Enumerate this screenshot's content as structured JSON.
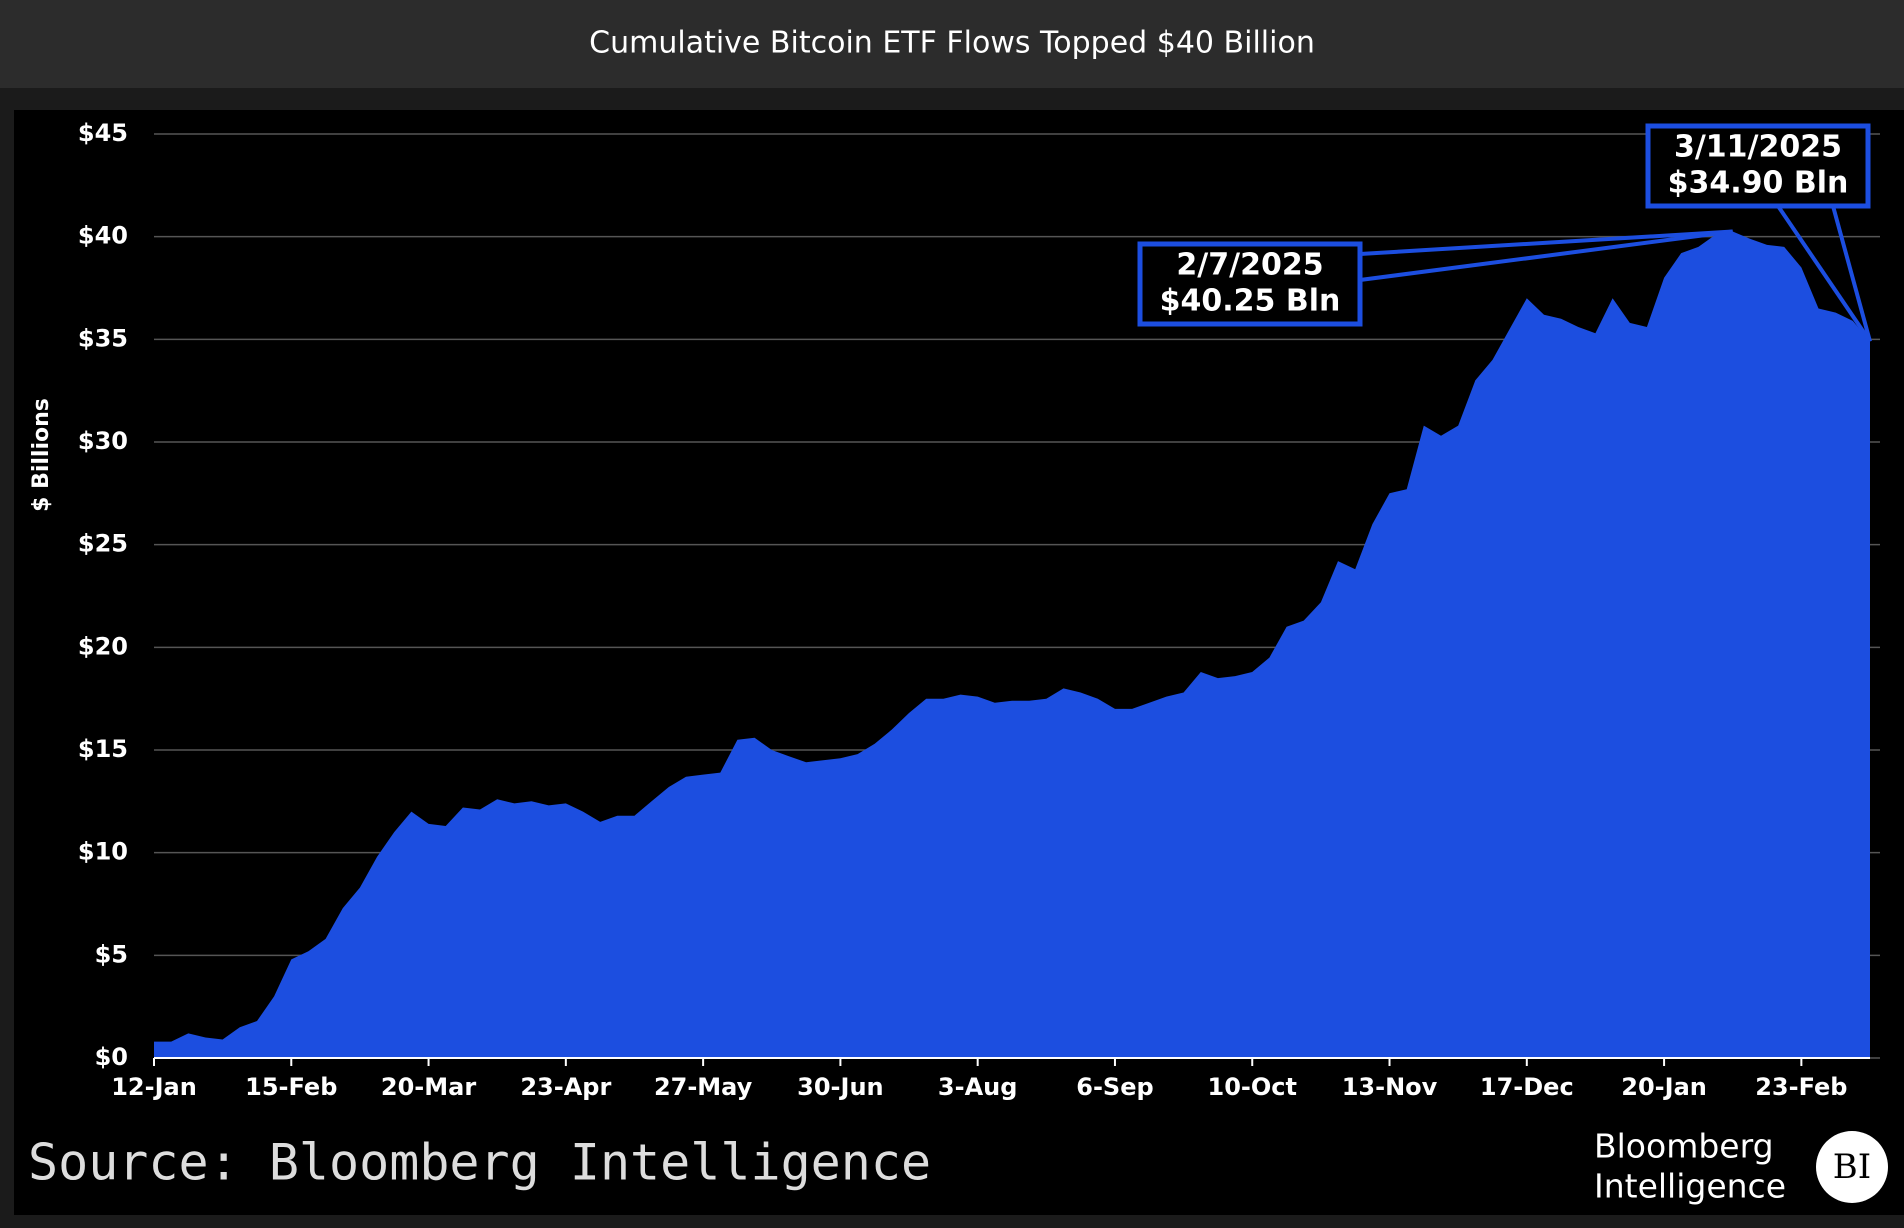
{
  "chart_data": {
    "type": "area",
    "title": "Cumulative Bitcoin ETF Flows Topped $40 Billion",
    "y_label": "$ Billions",
    "color": "#1c4ee0",
    "grid": true,
    "ylim": [
      0,
      45
    ],
    "yticks": [
      {
        "value": 0,
        "label": "$0"
      },
      {
        "value": 5,
        "label": "$5"
      },
      {
        "value": 10,
        "label": "$10"
      },
      {
        "value": 15,
        "label": "$15"
      },
      {
        "value": 20,
        "label": "$20"
      },
      {
        "value": 25,
        "label": "$25"
      },
      {
        "value": 30,
        "label": "$30"
      },
      {
        "value": 35,
        "label": "$35"
      },
      {
        "value": 40,
        "label": "$40"
      },
      {
        "value": 45,
        "label": "$45"
      }
    ],
    "categories": [
      "12-Jan",
      null,
      null,
      null,
      null,
      null,
      null,
      null,
      "15-Feb",
      null,
      null,
      null,
      null,
      null,
      null,
      null,
      "20-Mar",
      null,
      null,
      null,
      null,
      null,
      null,
      null,
      "23-Apr",
      null,
      null,
      null,
      null,
      null,
      null,
      null,
      "27-May",
      null,
      null,
      null,
      null,
      null,
      null,
      null,
      "30-Jun",
      null,
      null,
      null,
      null,
      null,
      null,
      null,
      "3-Aug",
      null,
      null,
      null,
      null,
      null,
      null,
      null,
      "6-Sep",
      null,
      null,
      null,
      null,
      null,
      null,
      null,
      "10-Oct",
      null,
      null,
      null,
      null,
      null,
      null,
      null,
      "13-Nov",
      null,
      null,
      null,
      null,
      null,
      null,
      null,
      "17-Dec",
      null,
      null,
      null,
      null,
      null,
      null,
      null,
      "20-Jan",
      null,
      null,
      null,
      null,
      null,
      null,
      null,
      "23-Feb",
      null,
      null,
      null,
      null
    ],
    "values": [
      0.8,
      0.8,
      1.2,
      1.0,
      0.9,
      1.5,
      1.8,
      3.0,
      4.8,
      5.2,
      5.8,
      7.3,
      8.3,
      9.8,
      11.0,
      12.0,
      11.4,
      11.3,
      12.2,
      12.1,
      12.6,
      12.4,
      12.5,
      12.3,
      12.4,
      12.0,
      11.5,
      11.8,
      11.8,
      12.5,
      13.2,
      13.7,
      13.8,
      13.9,
      15.5,
      15.6,
      15.0,
      14.7,
      14.4,
      14.5,
      14.6,
      14.8,
      15.3,
      16.0,
      16.8,
      17.5,
      17.5,
      17.7,
      17.6,
      17.3,
      17.4,
      17.4,
      17.5,
      18.0,
      17.8,
      17.5,
      17.0,
      17.0,
      17.3,
      17.6,
      17.8,
      18.8,
      18.5,
      18.6,
      18.8,
      19.5,
      21.0,
      21.3,
      22.2,
      24.2,
      23.8,
      26.0,
      27.5,
      27.7,
      30.8,
      30.3,
      30.8,
      33.0,
      34.0,
      35.5,
      37.0,
      36.2,
      36.0,
      35.6,
      35.3,
      37.0,
      35.8,
      35.6,
      38.0,
      39.2,
      39.5,
      40.1,
      40.25,
      39.9,
      39.6,
      39.5,
      38.5,
      36.5,
      36.3,
      35.9,
      34.9
    ],
    "annotations": [
      {
        "date": "2/7/2025",
        "label": "$40.25 Bln"
      },
      {
        "date": "3/11/2025",
        "label": "$34.90 Bln"
      }
    ]
  },
  "footer": {
    "source": "Source: Bloomberg Intelligence",
    "brand": [
      "Bloomberg",
      "Intelligence"
    ],
    "logo": "BI"
  }
}
